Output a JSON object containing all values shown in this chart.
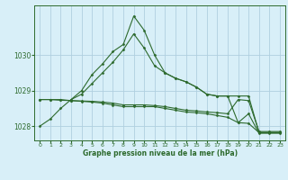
{
  "title": "Graphe pression niveau de la mer (hPa)",
  "background_color": "#d8eff8",
  "grid_color": "#b0cfe0",
  "line_color": "#2d6a2d",
  "xlim": [
    -0.5,
    23.5
  ],
  "ylim": [
    1027.6,
    1031.4
  ],
  "yticks": [
    1028,
    1029,
    1030
  ],
  "xticks": [
    0,
    1,
    2,
    3,
    4,
    5,
    6,
    7,
    8,
    9,
    10,
    11,
    12,
    13,
    14,
    15,
    16,
    17,
    18,
    19,
    20,
    21,
    22,
    23
  ],
  "series": [
    {
      "x": [
        0,
        1,
        2,
        3,
        4,
        5,
        6,
        7,
        8,
        9,
        10,
        11,
        12,
        13,
        14,
        15,
        16,
        17,
        18,
        19,
        20,
        21,
        22,
        23
      ],
      "y": [
        1028.0,
        1028.2,
        1028.5,
        1028.75,
        1029.0,
        1029.45,
        1029.75,
        1030.1,
        1030.3,
        1031.1,
        1030.7,
        1030.0,
        1029.5,
        1029.35,
        1029.25,
        1029.1,
        1028.9,
        1028.85,
        1028.85,
        1028.1,
        1028.35,
        1027.8,
        1027.8,
        1027.8
      ]
    },
    {
      "x": [
        3,
        4,
        5,
        6,
        7,
        8,
        9,
        10,
        11,
        12,
        13,
        14,
        15,
        16,
        17,
        18,
        19,
        20,
        21,
        22,
        23
      ],
      "y": [
        1028.75,
        1028.9,
        1029.2,
        1029.5,
        1029.8,
        1030.15,
        1030.6,
        1030.2,
        1029.7,
        1029.5,
        1029.35,
        1029.25,
        1029.1,
        1028.9,
        1028.85,
        1028.85,
        1028.85,
        1028.85,
        1027.82,
        1027.82,
        1027.82
      ]
    },
    {
      "x": [
        0,
        1,
        2,
        3,
        4,
        5,
        6,
        7,
        8,
        9,
        10,
        11,
        12,
        13,
        14,
        15,
        16,
        17,
        18,
        19,
        20,
        21,
        22,
        23
      ],
      "y": [
        1028.75,
        1028.75,
        1028.73,
        1028.72,
        1028.71,
        1028.7,
        1028.68,
        1028.65,
        1028.6,
        1028.6,
        1028.6,
        1028.58,
        1028.55,
        1028.5,
        1028.45,
        1028.43,
        1028.4,
        1028.38,
        1028.35,
        1028.75,
        1028.72,
        1027.85,
        1027.85,
        1027.85
      ]
    },
    {
      "x": [
        0,
        1,
        2,
        3,
        4,
        5,
        6,
        7,
        8,
        9,
        10,
        11,
        12,
        13,
        14,
        15,
        16,
        17,
        18,
        19,
        20,
        21,
        22,
        23
      ],
      "y": [
        1028.75,
        1028.75,
        1028.75,
        1028.72,
        1028.7,
        1028.68,
        1028.65,
        1028.6,
        1028.55,
        1028.55,
        1028.55,
        1028.55,
        1028.5,
        1028.45,
        1028.4,
        1028.38,
        1028.35,
        1028.3,
        1028.25,
        1028.1,
        1028.08,
        1027.82,
        1027.82,
        1027.82
      ]
    }
  ]
}
